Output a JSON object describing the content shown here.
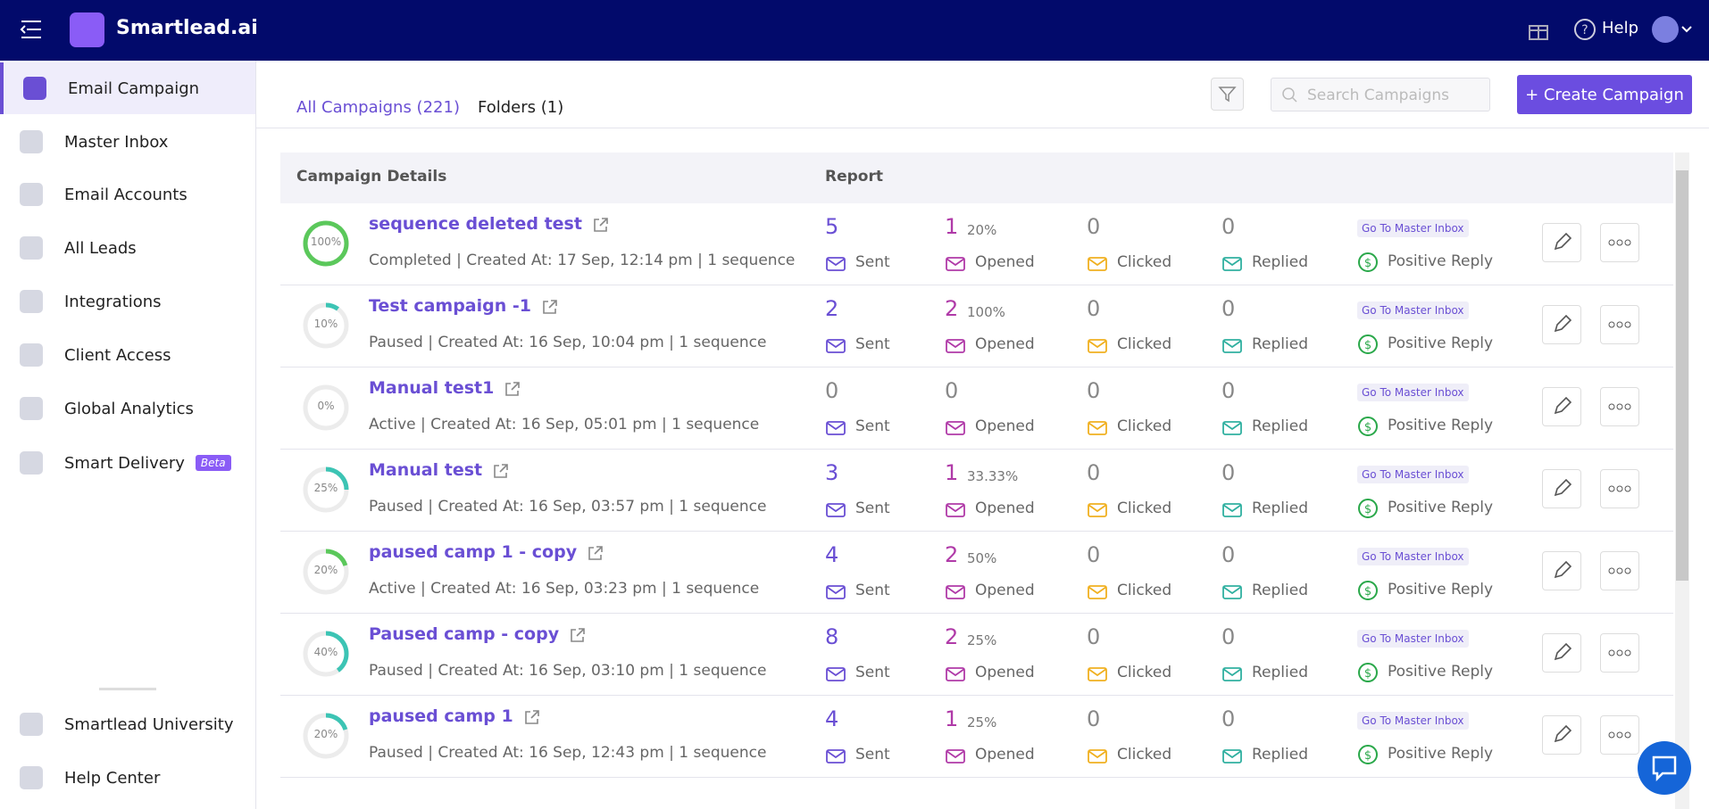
{
  "header": {
    "brand": "Smartlead.ai",
    "help": "Help"
  },
  "sidebar": {
    "items": [
      "Email Campaign",
      "Master Inbox",
      "Email Accounts",
      "All Leads",
      "Integrations",
      "Client Access",
      "Global Analytics",
      "Smart Delivery"
    ],
    "beta": "Beta",
    "bottom": [
      "Smartlead University",
      "Help Center"
    ]
  },
  "tabs": [
    "All Campaigns (221)",
    "Folders (1)"
  ],
  "search_placeholder": "Search Campaigns",
  "create_button": "+ Create Campaign",
  "table": {
    "headers": [
      "Campaign Details",
      "Report"
    ],
    "labels": {
      "sent": "Sent",
      "opened": "Opened",
      "clicked": "Clicked",
      "replied": "Replied",
      "inbox": "Go To Master Inbox",
      "positive": "Positive Reply"
    },
    "rows": [
      {
        "progress": 100,
        "progress_label": "100%",
        "ring_color": "#5bc85b",
        "name": "sequence deleted test",
        "status": "Completed | Created At: 17 Sep, 12:14 pm | 1 sequence",
        "sent": "5",
        "opened": "1",
        "opened_pct": "20%",
        "clicked": "0",
        "replied": "0"
      },
      {
        "progress": 10,
        "progress_label": "10%",
        "ring_color": "#3cc4b4",
        "name": "Test campaign -1",
        "status": "Paused | Created At: 16 Sep, 10:04 pm | 1 sequence",
        "sent": "2",
        "opened": "2",
        "opened_pct": "100%",
        "clicked": "0",
        "replied": "0"
      },
      {
        "progress": 0,
        "progress_label": "0%",
        "ring_color": "#3cc4b4",
        "name": "Manual test1",
        "status": "Active | Created At: 16 Sep, 05:01 pm | 1 sequence",
        "sent": "0",
        "opened": "0",
        "opened_pct": null,
        "clicked": "0",
        "replied": "0"
      },
      {
        "progress": 25,
        "progress_label": "25%",
        "ring_color": "#3cc4b4",
        "name": "Manual test",
        "status": "Paused | Created At: 16 Sep, 03:57 pm | 1 sequence",
        "sent": "3",
        "opened": "1",
        "opened_pct": "33.33%",
        "clicked": "0",
        "replied": "0"
      },
      {
        "progress": 20,
        "progress_label": "20%",
        "ring_color": "#5bc85b",
        "name": "paused camp 1 - copy",
        "status": "Active | Created At: 16 Sep, 03:23 pm | 1 sequence",
        "sent": "4",
        "opened": "2",
        "opened_pct": "50%",
        "clicked": "0",
        "replied": "0"
      },
      {
        "progress": 40,
        "progress_label": "40%",
        "ring_color": "#3cc4b4",
        "name": "Paused camp - copy",
        "status": "Paused | Created At: 16 Sep, 03:10 pm | 1 sequence",
        "sent": "8",
        "opened": "2",
        "opened_pct": "25%",
        "clicked": "0",
        "replied": "0"
      },
      {
        "progress": 20,
        "progress_label": "20%",
        "ring_color": "#3cc4b4",
        "name": "paused camp 1",
        "status": "Paused | Created At: 16 Sep, 12:43 pm | 1 sequence",
        "sent": "4",
        "opened": "1",
        "opened_pct": "25%",
        "clicked": "0",
        "replied": "0"
      }
    ]
  }
}
